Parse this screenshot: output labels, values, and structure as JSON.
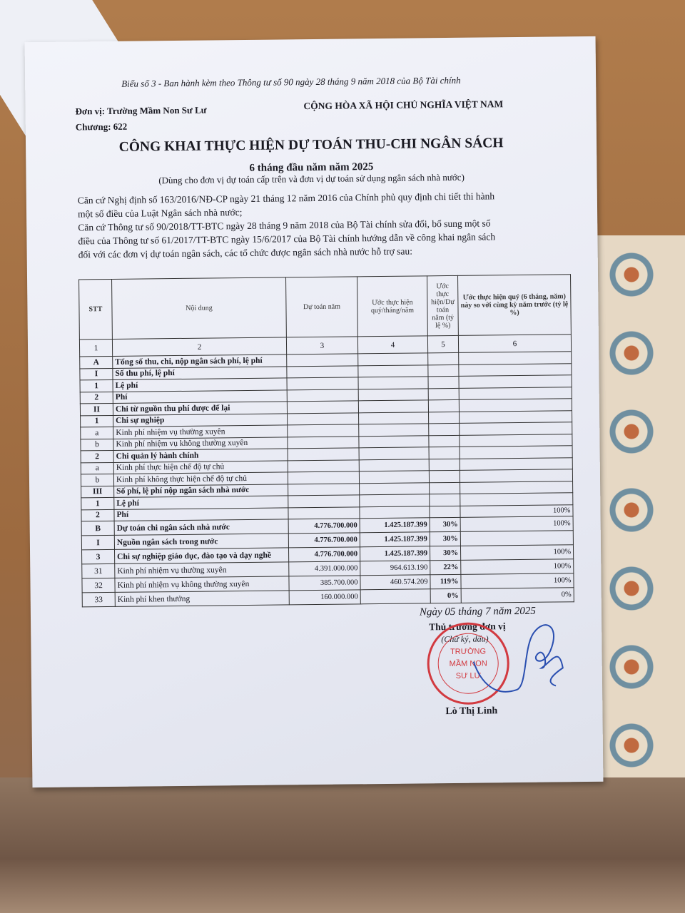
{
  "header": {
    "form_note": "Biểu số 3 - Ban hành kèm theo Thông tư số 90 ngày 28 tháng 9 năm 2018 của Bộ Tài chính",
    "unit": "Đơn vị: Trường Mầm Non Sư Lư",
    "chapter": "Chương: 622",
    "nation": "CỘNG HÒA XÃ HỘI CHỦ NGHĨA VIỆT NAM",
    "title": "CÔNG KHAI THỰC HIỆN DỰ TOÁN THU-CHI NGÂN SÁCH",
    "period": "6 tháng đầu năm năm 2025",
    "scope": "(Dùng cho đơn vị dự toán cấp trên và đơn vị dự toán sử dụng ngân sách nhà nước)",
    "basis_1a": "Căn cứ Nghị định số 163/2016/NĐ-CP ngày 21 tháng 12 năm 2016 của Chính phủ quy định chi tiết thi hành",
    "basis_1b": "một số điều của Luật Ngân sách nhà nước;",
    "basis_2a": "Căn cứ Thông tư số 90/2018/TT-BTC ngày 28 tháng 9 năm 2018 của Bộ Tài chính sửa đổi, bổ sung một số",
    "basis_2b": "điều của Thông tư số 61/2017/TT-BTC ngày 15/6/2017 của Bộ Tài chính hướng dẫn về công khai ngân sách",
    "basis_2c": "đối với các đơn vị dự toán ngân sách, các tổ chức được ngân sách nhà nước hỗ trợ sau:"
  },
  "table": {
    "columns": [
      "STT",
      "Nội dung",
      "Dự toán năm",
      "Ước thực hiện quý/tháng/năm",
      "Ước thực hiện/Dự toán năm (tỷ lệ %)",
      "Ước thực hiện quý (6 tháng, năm) này so với cùng kỳ năm trước (tỷ lệ %)"
    ],
    "column_numbers": [
      "1",
      "2",
      "3",
      "4",
      "5",
      "6"
    ],
    "rows": [
      {
        "stt": "A",
        "content": "Tổng số thu, chi, nộp ngân sách phí, lệ phí",
        "bold": true,
        "plan": "",
        "actual": "",
        "ratio": "",
        "yoy": ""
      },
      {
        "stt": "I",
        "content": "Số thu phí, lệ phí",
        "bold": true,
        "plan": "",
        "actual": "",
        "ratio": "",
        "yoy": ""
      },
      {
        "stt": "1",
        "content": "Lệ phí",
        "bold": true,
        "plan": "",
        "actual": "",
        "ratio": "",
        "yoy": ""
      },
      {
        "stt": "2",
        "content": "Phí",
        "bold": true,
        "plan": "",
        "actual": "",
        "ratio": "",
        "yoy": ""
      },
      {
        "stt": "II",
        "content": "Chi từ nguồn thu phí được để lại",
        "bold": true,
        "plan": "",
        "actual": "",
        "ratio": "",
        "yoy": ""
      },
      {
        "stt": "1",
        "content": "Chi sự nghiệp",
        "bold": true,
        "plan": "",
        "actual": "",
        "ratio": "",
        "yoy": ""
      },
      {
        "stt": "a",
        "content": "Kinh phí nhiệm vụ thường xuyên",
        "bold": false,
        "plan": "",
        "actual": "",
        "ratio": "",
        "yoy": ""
      },
      {
        "stt": "b",
        "content": "Kinh phí nhiệm vụ không thường xuyên",
        "bold": false,
        "plan": "",
        "actual": "",
        "ratio": "",
        "yoy": ""
      },
      {
        "stt": "2",
        "content": "Chi quản lý hành chính",
        "bold": true,
        "plan": "",
        "actual": "",
        "ratio": "",
        "yoy": ""
      },
      {
        "stt": "a",
        "content": "Kinh phí thực hiện chế độ tự chủ",
        "bold": false,
        "plan": "",
        "actual": "",
        "ratio": "",
        "yoy": ""
      },
      {
        "stt": "b",
        "content": "Kinh phí không thực hiện chế độ tự chủ",
        "bold": false,
        "plan": "",
        "actual": "",
        "ratio": "",
        "yoy": ""
      },
      {
        "stt": "III",
        "content": "Số phí, lệ phí nộp ngân sách nhà nước",
        "bold": true,
        "plan": "",
        "actual": "",
        "ratio": "",
        "yoy": ""
      },
      {
        "stt": "1",
        "content": "Lệ phí",
        "bold": true,
        "plan": "",
        "actual": "",
        "ratio": "",
        "yoy": ""
      },
      {
        "stt": "2",
        "content": "Phí",
        "bold": true,
        "plan": "",
        "actual": "",
        "ratio": "",
        "yoy": "100%"
      },
      {
        "stt": "B",
        "content": "Dự toán chi ngân sách nhà nước",
        "bold": true,
        "plan": "4.776.700.000",
        "actual": "1.425.187.399",
        "ratio": "30%",
        "yoy": "100%"
      },
      {
        "stt": "I",
        "content": "Nguồn ngân sách trong nước",
        "bold": true,
        "plan": "4.776.700.000",
        "actual": "1.425.187.399",
        "ratio": "30%",
        "yoy": ""
      },
      {
        "stt": "3",
        "content": "Chi sự nghiệp giáo dục, đào tạo và dạy nghề",
        "bold": true,
        "plan": "4.776.700.000",
        "actual": "1.425.187.399",
        "ratio": "30%",
        "yoy": "100%"
      },
      {
        "stt": "31",
        "content": "Kinh phí nhiệm vụ thường xuyên",
        "bold": false,
        "plan": "4.391.000.000",
        "actual": "964.613.190",
        "ratio": "22%",
        "yoy": "100%"
      },
      {
        "stt": "32",
        "content": "Kinh phí nhiệm vụ không thường xuyên",
        "bold": false,
        "plan": "385.700.000",
        "actual": "460.574.209",
        "ratio": "119%",
        "yoy": "100%"
      },
      {
        "stt": "33",
        "content": "Kinh phí khen thưởng",
        "bold": false,
        "plan": "160.000.000",
        "actual": "",
        "ratio": "0%",
        "yoy": "0%"
      }
    ]
  },
  "footer": {
    "date": "Ngày 05 tháng 7 năm 2025",
    "role": "Thủ trưởng đơn vị",
    "sign_note": "(Chữ ký, dấu)",
    "signer": "Lò Thị Linh",
    "stamp_text": "TRƯỜNG MẦM NON SƯ LƯ",
    "stamp_color": "#d23a40",
    "signature_color": "#2a4fb0"
  }
}
